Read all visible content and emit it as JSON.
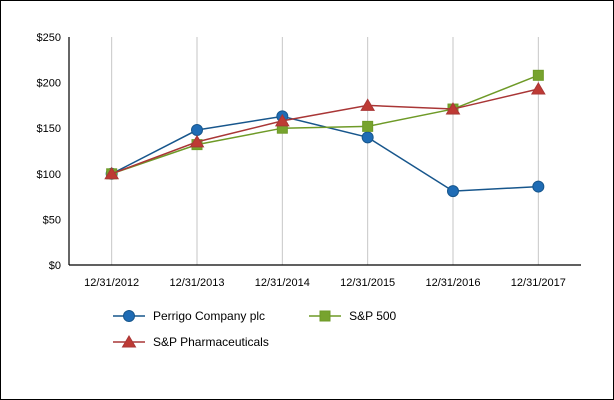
{
  "chart_data": {
    "type": "line",
    "title": "",
    "x": [
      "12/31/2012",
      "12/31/2013",
      "12/31/2014",
      "12/31/2015",
      "12/31/2016",
      "12/31/2017"
    ],
    "series": [
      {
        "name": "Perrigo Company plc",
        "marker": "circle",
        "color": "#1F6CB5",
        "line_color": "#17568C",
        "values": [
          100,
          148,
          163,
          140,
          81,
          86
        ]
      },
      {
        "name": "S&P 500",
        "marker": "square",
        "color": "#77A32E",
        "line_color": "#6E9A27",
        "values": [
          100,
          132,
          150,
          152,
          171,
          208
        ]
      },
      {
        "name": "S&P Pharmaceuticals",
        "marker": "triangle",
        "color": "#BE3A34",
        "line_color": "#A93636",
        "values": [
          100,
          135,
          158,
          175,
          171,
          193
        ]
      }
    ],
    "ylim": [
      0,
      250
    ],
    "ytick_values": [
      0,
      50,
      100,
      150,
      200,
      250
    ],
    "yticks": [
      "$0",
      "$50",
      "$100",
      "$150",
      "$200",
      "$250"
    ],
    "grid": "vertical-only",
    "grid_color": "#C6C6C6",
    "axis_color": "#000000",
    "legend_position": "bottom"
  }
}
